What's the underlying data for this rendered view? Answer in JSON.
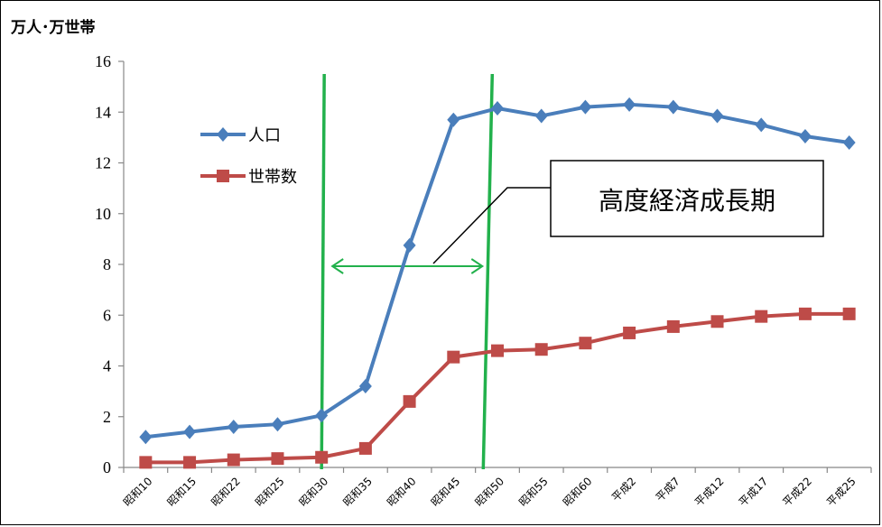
{
  "chart_data": {
    "type": "line",
    "unit_label": "万人･万世帯",
    "categories": [
      "昭和10",
      "昭和15",
      "昭和22",
      "昭和25",
      "昭和30",
      "昭和35",
      "昭和40",
      "昭和45",
      "昭和50",
      "昭和55",
      "昭和60",
      "平成2",
      "平成7",
      "平成12",
      "平成17",
      "平成22",
      "平成25"
    ],
    "series": [
      {
        "name": "人口",
        "color": "#4a7ebb",
        "marker": "diamond",
        "values": [
          1.2,
          1.4,
          1.6,
          1.7,
          2.05,
          3.2,
          8.75,
          13.7,
          14.15,
          13.85,
          14.2,
          14.3,
          14.2,
          13.85,
          13.5,
          13.05,
          12.8
        ]
      },
      {
        "name": "世帯数",
        "color": "#be4b48",
        "marker": "square",
        "values": [
          0.2,
          0.2,
          0.3,
          0.35,
          0.4,
          0.75,
          2.6,
          4.35,
          4.6,
          4.65,
          4.9,
          5.3,
          5.55,
          5.75,
          5.95,
          6.05,
          6.05
        ]
      }
    ],
    "ylim": [
      0,
      16
    ],
    "yticks": [
      "0",
      "2",
      "4",
      "6",
      "8",
      "10",
      "12",
      "14",
      "16"
    ],
    "legend_position": "left",
    "grid": false,
    "annotation": {
      "text": "高度経済成長期",
      "span_from": "昭和30",
      "span_to": "昭和45",
      "line_color": "#22b14c",
      "arrow_color": "#22b14c"
    }
  }
}
